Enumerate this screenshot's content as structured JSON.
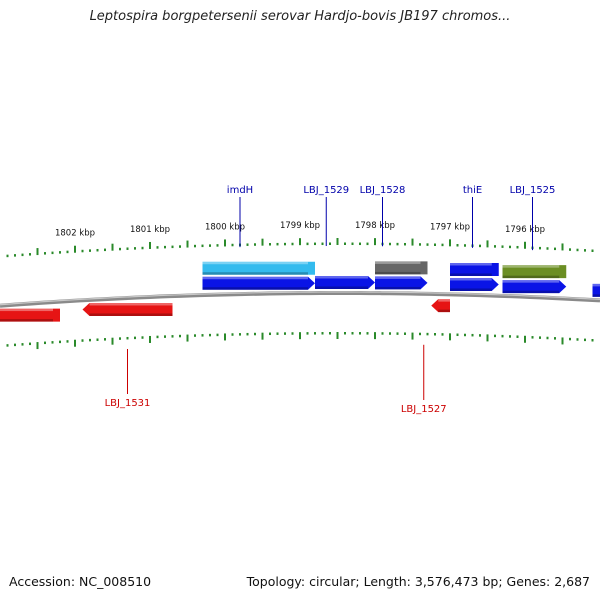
{
  "title": "Leptospira borgpetersenii serovar Hardjo-bovis JB197 chromos...",
  "footer": {
    "accession": "Accession: NC_008510",
    "summary": "Topology: circular; Length: 3,576,473 bp; Genes: 2,687"
  },
  "colors": {
    "backbone": "#8a8a8a",
    "tick": "#2a8a2a",
    "forward_label": "#0000aa",
    "reverse_label": "#cc0000",
    "forward_gene": "#0a14e6",
    "reverse_gene": "#e61414",
    "cyan_feature": "#33bbee",
    "gray_feature": "#666666",
    "olive_feature": "#6b8e23"
  },
  "scale": {
    "unit": "kbp",
    "ticks": [
      {
        "label": "1802 kbp",
        "kbp": 1802
      },
      {
        "label": "1801 kbp",
        "kbp": 1801
      },
      {
        "label": "1800 kbp",
        "kbp": 1800
      },
      {
        "label": "1799 kbp",
        "kbp": 1799
      },
      {
        "label": "1798 kbp",
        "kbp": 1798
      },
      {
        "label": "1797 kbp",
        "kbp": 1797
      },
      {
        "label": "1796 kbp",
        "kbp": 1796
      }
    ]
  },
  "forward_labels": [
    {
      "label": "imdH",
      "kbp": 1799.8
    },
    {
      "label": "LBJ_1529",
      "kbp": 1798.65
    },
    {
      "label": "LBJ_1528",
      "kbp": 1797.9
    },
    {
      "label": "thiE",
      "kbp": 1796.7
    },
    {
      "label": "LBJ_1525",
      "kbp": 1795.9
    }
  ],
  "reverse_labels": [
    {
      "label": "LBJ_1531",
      "kbp": 1801.3
    },
    {
      "label": "LBJ_1527",
      "kbp": 1797.35
    }
  ],
  "forward_genes": [
    {
      "start": 1800.3,
      "end": 1798.8,
      "arrow": true
    },
    {
      "start": 1798.8,
      "end": 1798.0,
      "arrow": true
    },
    {
      "start": 1798.0,
      "end": 1797.3,
      "arrow": true
    },
    {
      "start": 1797.0,
      "end": 1796.35,
      "arrow": true
    },
    {
      "start": 1796.3,
      "end": 1795.45,
      "arrow": true
    },
    {
      "start": 1795.1,
      "end": 1794.7,
      "arrow": false
    }
  ],
  "reverse_genes": [
    {
      "start": 1803.0,
      "end": 1802.2,
      "arrow": false
    },
    {
      "start": 1801.9,
      "end": 1800.7,
      "arrow": true
    },
    {
      "start": 1797.25,
      "end": 1797.0,
      "arrow": true
    }
  ],
  "features": [
    {
      "start": 1800.3,
      "end": 1798.8,
      "color_key": "cyan_feature"
    },
    {
      "start": 1798.0,
      "end": 1797.3,
      "color_key": "gray_feature"
    },
    {
      "start": 1797.0,
      "end": 1796.35,
      "color_key": "blue_feature"
    },
    {
      "start": 1796.3,
      "end": 1795.45,
      "color_key": "olive_feature"
    }
  ]
}
